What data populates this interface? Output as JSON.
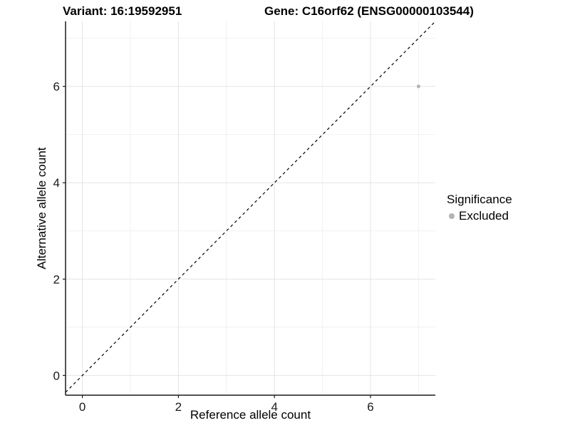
{
  "header": {
    "variant_title": "Variant: 16:19592951",
    "gene_title": "Gene: C16orf62 (ENSG00000103544)"
  },
  "chart_data": {
    "type": "scatter",
    "title": "Variant: 16:19592951  Gene: C16orf62 (ENSG00000103544)",
    "xlabel": "Reference allele count",
    "ylabel": "Alternative allele count",
    "xlim": [
      -0.35,
      7.35
    ],
    "ylim": [
      -0.41,
      7.35
    ],
    "xticks": [
      0,
      2,
      4,
      6
    ],
    "yticks": [
      0,
      2,
      4,
      6
    ],
    "minor_xticks": [
      1,
      3,
      5,
      7
    ],
    "minor_yticks": [
      1,
      3,
      5,
      7
    ],
    "grid": true,
    "series": [
      {
        "name": "Excluded",
        "color": "#b3b3b3",
        "points": [
          {
            "x": 7,
            "y": 6
          }
        ]
      }
    ],
    "reference_line": {
      "type": "identity",
      "style": "dashed",
      "color": "#000000"
    },
    "legend": {
      "title": "Significance",
      "position": "right",
      "entries": [
        {
          "label": "Excluded",
          "color": "#b3b3b3"
        }
      ]
    },
    "colors": {
      "major_grid": "#e4e4e4",
      "minor_grid": "#f1f1f1",
      "axis_line": "#1a1a1a",
      "tick_text": "#1a1a1a",
      "background": "#ffffff"
    }
  }
}
